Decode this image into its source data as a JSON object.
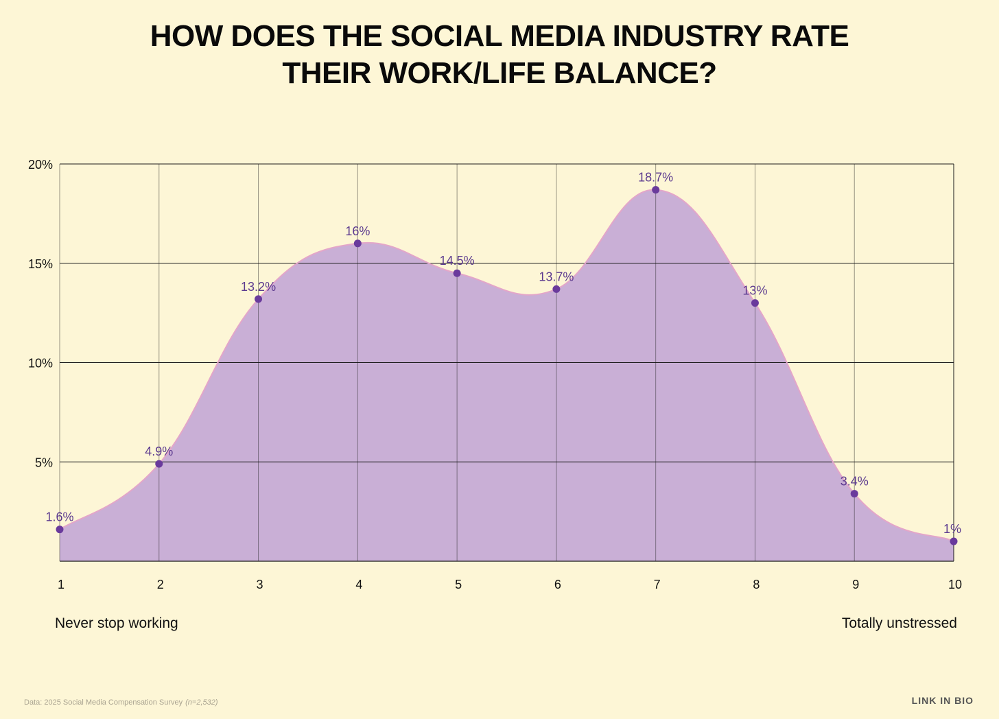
{
  "title": {
    "line1": "HOW DOES THE SOCIAL MEDIA INDUSTRY RATE",
    "line2": "THEIR WORK/LIFE BALANCE?"
  },
  "footer": {
    "source": "Data: 2025 Social Media Compensation Survey",
    "sample": "(n=2,532)",
    "brand": "LINK IN BIO"
  },
  "colors": {
    "background": "#fdf6d6",
    "fill": "#c9afd6",
    "stroke": "#e3a6c9",
    "point": "#6a3a9c",
    "label": "#5c3a8f"
  },
  "chart_data": {
    "type": "area",
    "title": "HOW DOES THE SOCIAL MEDIA INDUSTRY RATE THEIR WORK/LIFE BALANCE?",
    "categories": [
      "1",
      "2",
      "3",
      "4",
      "5",
      "6",
      "7",
      "8",
      "9",
      "10"
    ],
    "values": [
      1.6,
      4.9,
      13.2,
      16,
      14.5,
      13.7,
      18.7,
      13,
      3.4,
      1
    ],
    "data_labels": [
      "1.6%",
      "4.9%",
      "13.2%",
      "16%",
      "14.5%",
      "13.7%",
      "18.7%",
      "13%",
      "3.4%",
      "1%"
    ],
    "yticks": [
      5,
      10,
      15,
      20
    ],
    "ytick_labels": [
      "5%",
      "10%",
      "15%",
      "20%"
    ],
    "ylim": [
      0,
      20
    ],
    "x_low_label": "Never stop working",
    "x_high_label": "Totally unstressed",
    "grid": true
  }
}
